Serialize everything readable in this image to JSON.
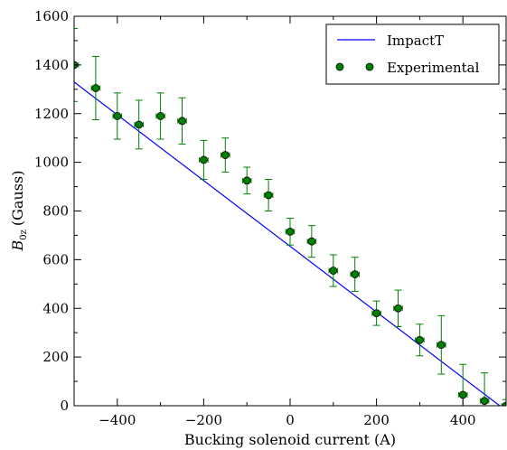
{
  "chart_data": {
    "type": "scatter",
    "xlabel": "Bucking solenoid current (A)",
    "ylabel": "(Gauss)",
    "ylabel_symbol": "B",
    "ylabel_subscript": "0z",
    "xlim": [
      -500,
      500
    ],
    "ylim": [
      0,
      1600
    ],
    "xticks": [
      -400,
      -200,
      0,
      200,
      400
    ],
    "yticks": [
      0,
      200,
      400,
      600,
      800,
      1000,
      1200,
      1400,
      1600
    ],
    "grid": false,
    "legend": "top-right",
    "series": [
      {
        "name": "ImpactT",
        "kind": "line",
        "color": "#0000ff",
        "x": [
          -500,
          500
        ],
        "y": [
          1330,
          -20
        ]
      },
      {
        "name": "Experimental",
        "kind": "scatter",
        "color": "#008000",
        "edge_color": "#000000",
        "x": [
          -500,
          -450,
          -400,
          -350,
          -300,
          -250,
          -200,
          -150,
          -100,
          -50,
          0,
          50,
          100,
          150,
          200,
          250,
          300,
          350,
          400,
          450,
          500
        ],
        "y": [
          1400,
          1305,
          1190,
          1155,
          1190,
          1170,
          1010,
          1030,
          925,
          865,
          715,
          675,
          555,
          540,
          380,
          400,
          270,
          250,
          45,
          20,
          0
        ],
        "y_err": [
          150,
          130,
          95,
          100,
          95,
          95,
          80,
          70,
          55,
          65,
          55,
          65,
          65,
          70,
          50,
          75,
          65,
          120,
          125,
          115,
          25
        ],
        "x_err": [
          10,
          10,
          10,
          10,
          10,
          10,
          10,
          10,
          10,
          10,
          10,
          10,
          10,
          10,
          10,
          10,
          10,
          10,
          10,
          10,
          10
        ]
      }
    ]
  }
}
